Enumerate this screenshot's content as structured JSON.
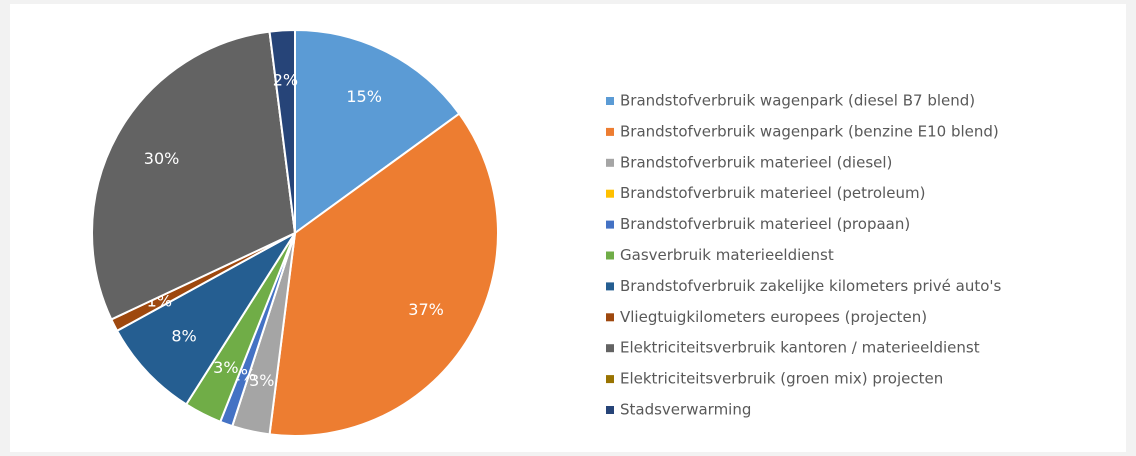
{
  "chart_data": {
    "type": "pie",
    "categories": [
      "Brandstofverbruik wagenpark (diesel B7 blend)",
      "Brandstofverbruik wagenpark (benzine E10 blend)",
      "Brandstofverbruik materieel (diesel)",
      "Brandstofverbruik materieel (petroleum)",
      "Brandstofverbruik materieel (propaan)",
      "Gasverbruik materieeldienst",
      "Brandstofverbruik zakelijke kilometers privé auto's",
      "Vliegtuigkilometers europees (projecten)",
      "Elektriciteitsverbruik kantoren / materieeldienst",
      "Elektriciteitsverbruik (groen mix) projecten",
      "Stadsverwarming"
    ],
    "values": [
      15,
      37,
      3,
      0,
      1,
      3,
      8,
      1,
      30,
      0,
      2
    ],
    "value_labels": [
      "15%",
      "37%",
      "3%",
      null,
      "1%",
      "3%",
      "8%",
      "1%",
      "30%",
      null,
      "2%"
    ],
    "colors": [
      "#5b9bd5",
      "#ed7d31",
      "#a5a5a5",
      "#ffc000",
      "#4472c4",
      "#70ad47",
      "#255e91",
      "#9e480e",
      "#636363",
      "#997300",
      "#264478"
    ],
    "legend": "right"
  }
}
